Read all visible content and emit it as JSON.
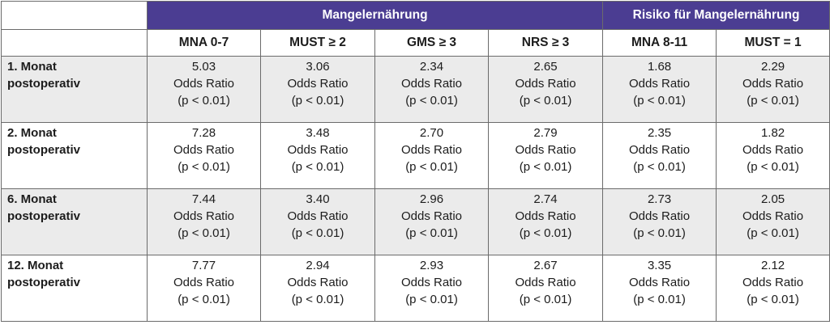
{
  "groups": {
    "malnutrition": "Mangelernährung",
    "risk": "Risiko für Mangelernährung"
  },
  "columns": [
    "MNA  0-7",
    "MUST  ≥ 2",
    "GMS  ≥ 3",
    "NRS  ≥ 3",
    "MNA 8-11",
    "MUST = 1"
  ],
  "unit_label": "Odds Ratio",
  "p_label": "(p < 0.01)",
  "rows": [
    {
      "label_line1": "1. Monat",
      "label_line2": "postoperativ",
      "values": [
        "5.03",
        "3.06",
        "2.34",
        "2.65",
        "1.68",
        "2.29"
      ]
    },
    {
      "label_line1": "2. Monat",
      "label_line2": "postoperativ",
      "values": [
        "7.28",
        "3.48",
        "2.70",
        "2.79",
        "2.35",
        "1.82"
      ]
    },
    {
      "label_line1": "6. Monat",
      "label_line2": "postoperativ",
      "values": [
        "7.44",
        "3.40",
        "2.96",
        "2.74",
        "2.73",
        "2.05"
      ]
    },
    {
      "label_line1": "12. Monat",
      "label_line2": "postoperativ",
      "values": [
        "7.77",
        "2.94",
        "2.93",
        "2.67",
        "3.35",
        "2.12"
      ]
    }
  ],
  "colors": {
    "header_purple": "#4b3d92",
    "shaded_row": "#ebebeb"
  }
}
